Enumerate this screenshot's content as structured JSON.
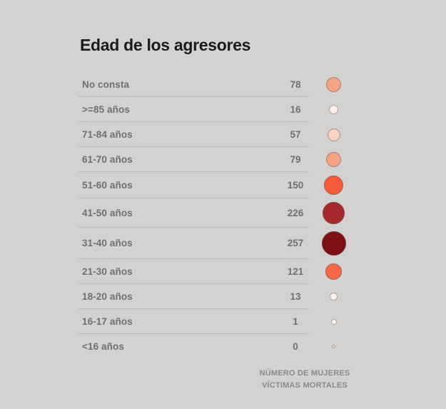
{
  "title": "Edad de los agresores",
  "footer": {
    "line1": "NÚMERO DE MUJERES",
    "line2": "VÍCTIMAS MORTALES"
  },
  "colors": {
    "background": "#d3d2d0",
    "title_text": "#1b1b1b",
    "row_text": "#6f6f6d",
    "separator": "#bebdbb",
    "footer_text": "#8b8a88",
    "dot_stroke": "#9a948e",
    "scale_min": "#fdf6f1",
    "scale_mid": "#f55b38",
    "scale_max": "#7d1014"
  },
  "rows": [
    {
      "label": "No consta",
      "value": 78,
      "dot_size": 21,
      "dot_color": "#f5a487"
    },
    {
      "label": ">=85 años",
      "value": 16,
      "dot_size": 13,
      "dot_color": "#fcf0e9"
    },
    {
      "label": "71-84 años",
      "value": 57,
      "dot_size": 18,
      "dot_color": "#f8d3c1"
    },
    {
      "label": "61-70 años",
      "value": 79,
      "dot_size": 21,
      "dot_color": "#f5a284"
    },
    {
      "label": "51-60 años",
      "value": 150,
      "dot_size": 27,
      "dot_color": "#f55b38"
    },
    {
      "label": "41-50 años",
      "value": 226,
      "dot_size": 31,
      "dot_color": "#a5282c"
    },
    {
      "label": "31-40 años",
      "value": 257,
      "dot_size": 34,
      "dot_color": "#7d1014"
    },
    {
      "label": "21-30 años",
      "value": 121,
      "dot_size": 23,
      "dot_color": "#f46747"
    },
    {
      "label": "18-20 años",
      "value": 13,
      "dot_size": 11,
      "dot_color": "#fdf3ec"
    },
    {
      "label": "16-17 años",
      "value": 1,
      "dot_size": 8,
      "dot_color": "#fdf6f1"
    },
    {
      "label": "<16 años",
      "value": 0,
      "dot_size": 5,
      "dot_color": "#e9e3dd"
    }
  ],
  "chart_data": {
    "type": "table",
    "symbol": "proportional-colored-circle",
    "title": "Edad de los agresores",
    "value_label": "NÚMERO DE MUJERES VÍCTIMAS MORTALES",
    "categories": [
      "No consta",
      ">=85 años",
      "71-84 años",
      "61-70 años",
      "51-60 años",
      "41-50 años",
      "31-40 años",
      "21-30 años",
      "18-20 años",
      "16-17 años",
      "<16 años"
    ],
    "values": [
      78,
      16,
      57,
      79,
      150,
      226,
      257,
      121,
      13,
      1,
      0
    ],
    "color_scale": "light-pink (low) to dark-maroon (high)",
    "size_scale": "circle area proportional to value",
    "legend_position": "bottom-right"
  }
}
